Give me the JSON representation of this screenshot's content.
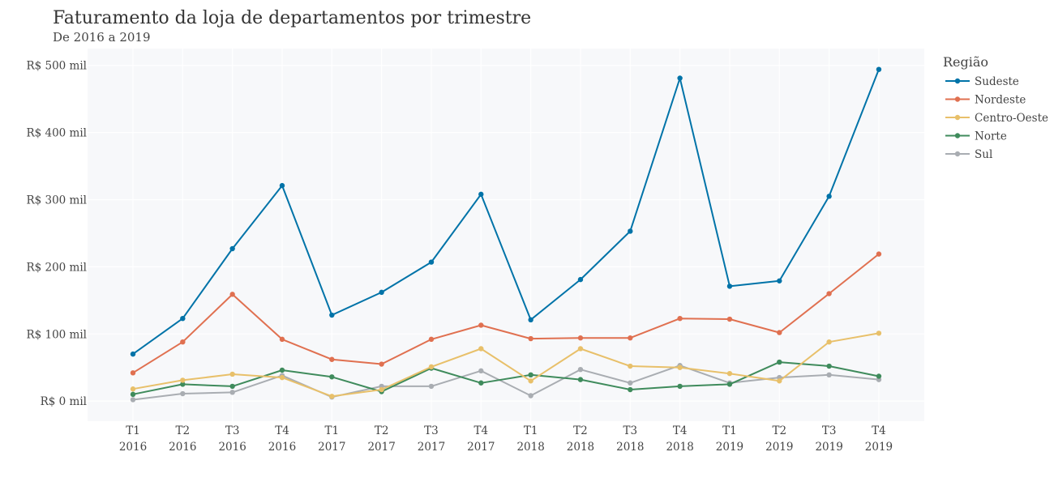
{
  "chart_data": {
    "type": "line",
    "title": "Faturamento da loja de departamentos por trimestre",
    "subtitle": "De 2016 a 2019",
    "categories": [
      [
        "T1",
        "2016"
      ],
      [
        "T2",
        "2016"
      ],
      [
        "T3",
        "2016"
      ],
      [
        "T4",
        "2016"
      ],
      [
        "T1",
        "2017"
      ],
      [
        "T2",
        "2017"
      ],
      [
        "T3",
        "2017"
      ],
      [
        "T4",
        "2017"
      ],
      [
        "T1",
        "2018"
      ],
      [
        "T2",
        "2018"
      ],
      [
        "T3",
        "2018"
      ],
      [
        "T4",
        "2018"
      ],
      [
        "T1",
        "2019"
      ],
      [
        "T2",
        "2019"
      ],
      [
        "T3",
        "2019"
      ],
      [
        "T4",
        "2019"
      ]
    ],
    "y_ticks": [
      {
        "value": 0,
        "label": "R$ 0 mil"
      },
      {
        "value": 100,
        "label": "R$ 100 mil"
      },
      {
        "value": 200,
        "label": "R$ 200 mil"
      },
      {
        "value": 300,
        "label": "R$ 300 mil"
      },
      {
        "value": 400,
        "label": "R$ 400 mil"
      },
      {
        "value": 500,
        "label": "R$ 500 mil"
      }
    ],
    "ylim": [
      -30,
      525
    ],
    "grid": true,
    "legend_title": "Região",
    "legend_position": "top-right",
    "series": [
      {
        "name": "Sudeste",
        "color": "#0073a8",
        "values": [
          70,
          123,
          227,
          321,
          128,
          162,
          207,
          308,
          121,
          181,
          253,
          481,
          171,
          179,
          305,
          494
        ]
      },
      {
        "name": "Nordeste",
        "color": "#e07050",
        "values": [
          42,
          88,
          159,
          92,
          62,
          55,
          92,
          113,
          93,
          94,
          94,
          123,
          122,
          102,
          160,
          219
        ]
      },
      {
        "name": "Centro-Oeste",
        "color": "#e8c06a",
        "values": [
          18,
          31,
          40,
          35,
          7,
          17,
          51,
          78,
          30,
          78,
          52,
          50,
          41,
          30,
          88,
          101
        ]
      },
      {
        "name": "Norte",
        "color": "#3f8b5c",
        "values": [
          10,
          25,
          22,
          46,
          36,
          14,
          49,
          27,
          39,
          32,
          17,
          22,
          25,
          58,
          52,
          37
        ]
      },
      {
        "name": "Sul",
        "color": "#a9adb2",
        "values": [
          2,
          11,
          13,
          38,
          6,
          22,
          22,
          45,
          8,
          47,
          27,
          53,
          27,
          35,
          39,
          32
        ]
      }
    ]
  }
}
